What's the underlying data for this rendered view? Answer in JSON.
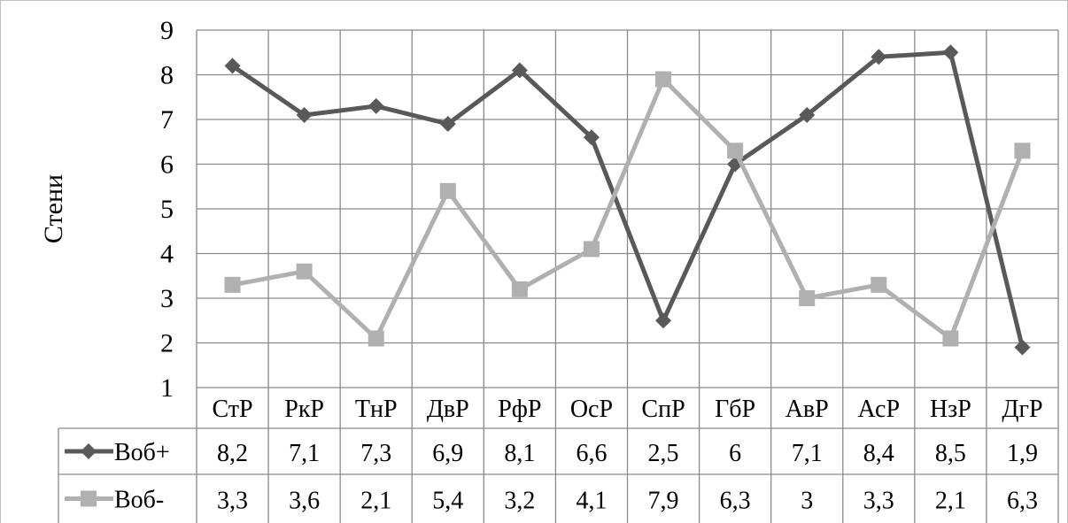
{
  "chart_data": {
    "type": "line",
    "title": "",
    "xlabel": "",
    "ylabel": "Стени",
    "ylim": [
      1,
      9
    ],
    "yticks": [
      "1",
      "2",
      "3",
      "4",
      "5",
      "6",
      "7",
      "8",
      "9"
    ],
    "grid": true,
    "legend": "data-table-left",
    "categories": [
      "СтР",
      "РкР",
      "ТнР",
      "ДвР",
      "РфР",
      "ОсР",
      "СпР",
      "ГбР",
      "АвР",
      "АсР",
      "НзР",
      "ДгР"
    ],
    "series": [
      {
        "name": "Воб+",
        "marker": "diamond",
        "color": "#595959",
        "values": [
          8.2,
          7.1,
          7.3,
          6.9,
          8.1,
          6.6,
          2.5,
          6,
          7.1,
          8.4,
          8.5,
          1.9
        ],
        "labels": [
          "8,2",
          "7,1",
          "7,3",
          "6,9",
          "8,1",
          "6,6",
          "2,5",
          "6",
          "7,1",
          "8,4",
          "8,5",
          "1,9"
        ]
      },
      {
        "name": "Воб-",
        "marker": "square",
        "color": "#b0b0b0",
        "values": [
          3.3,
          3.6,
          2.1,
          5.4,
          3.2,
          4.1,
          7.9,
          6.3,
          3,
          3.3,
          2.1,
          6.3
        ],
        "labels": [
          "3,3",
          "3,6",
          "2,1",
          "5,4",
          "3,2",
          "4,1",
          "7,9",
          "6,3",
          "3",
          "3,3",
          "2,1",
          "6,3"
        ]
      }
    ]
  }
}
